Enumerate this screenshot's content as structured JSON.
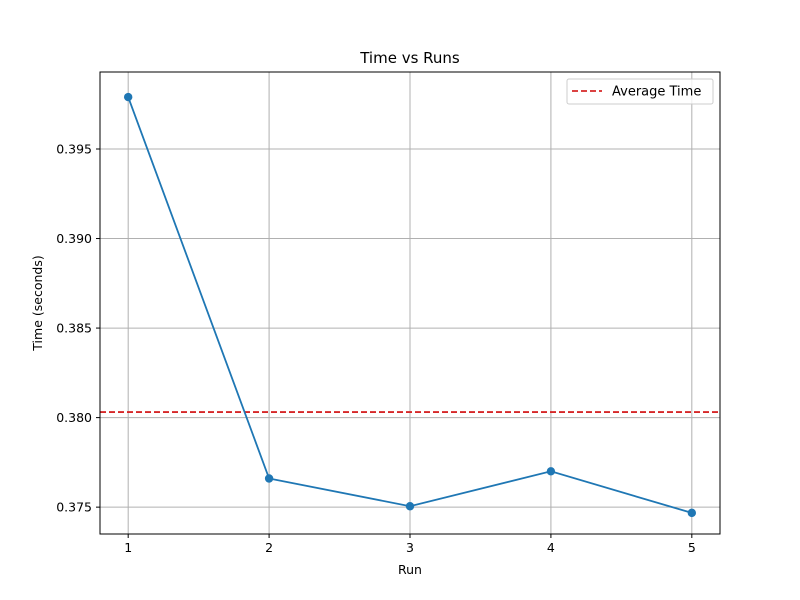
{
  "chart_data": {
    "type": "line",
    "title": "Time vs Runs",
    "xlabel": "Run",
    "ylabel": "Time (seconds)",
    "x": [
      1,
      2,
      3,
      4,
      5
    ],
    "series": [
      {
        "values": [
          0.3979,
          0.3766,
          0.37505,
          0.377,
          0.37468
        ],
        "color": "#1f77b4",
        "marker": "circle"
      }
    ],
    "reference_lines": [
      {
        "name": "Average Time",
        "y": 0.38031,
        "color": "#d62728",
        "style": "dashed"
      }
    ],
    "xlim": [
      0.8,
      5.2
    ],
    "ylim": [
      0.3735,
      0.3993
    ],
    "xticks": [
      1,
      2,
      3,
      4,
      5
    ],
    "xtick_labels": [
      "1",
      "2",
      "3",
      "4",
      "5"
    ],
    "yticks": [
      0.375,
      0.38,
      0.385,
      0.39,
      0.395
    ],
    "ytick_labels": [
      "0.375",
      "0.380",
      "0.385",
      "0.390",
      "0.395"
    ],
    "grid": true,
    "legend": {
      "position": "top-right",
      "entries": [
        "Average Time"
      ]
    }
  }
}
